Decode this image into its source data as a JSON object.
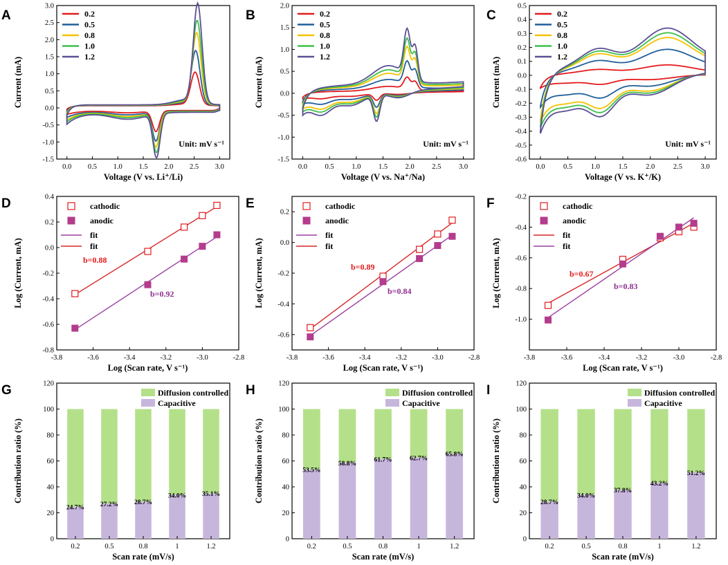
{
  "colors": {
    "red": "#e31a1c",
    "blue": "#1f5f99",
    "yellow": "#f5c200",
    "green": "#3dbf4a",
    "purple": "#5b4f95",
    "fit_red": "#d62728",
    "fit_purple": "#9b3fa0",
    "marker": "#b43c8c",
    "bar_capacitive": "#c7b6dc",
    "bar_diffusion": "#b4e08a",
    "blabel_red": "#e31a1c",
    "blabel_purple": "#8e2f8e"
  },
  "chart_data": [
    {
      "id": "A",
      "type": "line",
      "letter": "A",
      "xlabel": "Voltage (V vs. Li⁺/Li)",
      "ylabel": "Current (mA)",
      "xlim": [
        -0.2,
        3.2
      ],
      "ylim": [
        -1.5,
        3.0
      ],
      "xticks": [
        "0.0",
        "0.5",
        "1.0",
        "1.5",
        "2.0",
        "2.5",
        "3.0"
      ],
      "yticks": [
        "-1.5",
        "-1.0",
        "-0.5",
        "0.0",
        "0.5",
        "1.0",
        "1.5",
        "2.0",
        "2.5",
        "3.0"
      ],
      "unit_label": "Unit: mV s⁻¹",
      "legend": [
        "0.2",
        "0.5",
        "0.8",
        "1.0",
        "1.2"
      ],
      "series": [
        {
          "name": "0.2",
          "red_peak": 0.95,
          "ox_peak_v": 2.52,
          "red_peak_v": 1.75,
          "red_min": -0.6
        },
        {
          "name": "0.5",
          "red_peak": 1.55,
          "ox_peak_v": 2.53,
          "red_peak_v": 1.75,
          "red_min": -0.85
        },
        {
          "name": "0.8",
          "red_peak": 2.05,
          "ox_peak_v": 2.55,
          "red_peak_v": 1.75,
          "red_min": -1.0
        },
        {
          "name": "1.0",
          "red_peak": 2.4,
          "ox_peak_v": 2.56,
          "red_peak_v": 1.76,
          "red_min": -1.15
        },
        {
          "name": "1.2",
          "red_peak": 2.88,
          "ox_peak_v": 2.57,
          "red_peak_v": 1.76,
          "red_min": -1.28
        }
      ]
    },
    {
      "id": "B",
      "type": "line",
      "letter": "B",
      "xlabel": "Voltage (V vs. Na⁺/Na)",
      "ylabel": "Current (mA)",
      "xlim": [
        -0.2,
        3.2
      ],
      "ylim": [
        -1.5,
        2.0
      ],
      "xticks": [
        "0.0",
        "0.5",
        "1.0",
        "1.5",
        "2.0",
        "2.5",
        "3.0"
      ],
      "yticks": [
        "-1.5",
        "-1.0",
        "-0.5",
        "0.0",
        "0.5",
        "1.0",
        "1.5",
        "2.0"
      ],
      "unit_label": "Unit: mV s⁻¹",
      "legend": [
        "0.2",
        "0.5",
        "0.8",
        "1.0",
        "1.2"
      ],
      "series": [
        {
          "name": "0.2",
          "scale": 0.25
        },
        {
          "name": "0.5",
          "scale": 0.5
        },
        {
          "name": "0.8",
          "scale": 0.72
        },
        {
          "name": "1.0",
          "scale": 0.85
        },
        {
          "name": "1.2",
          "scale": 1.0
        }
      ]
    },
    {
      "id": "C",
      "type": "line",
      "letter": "C",
      "xlabel": "Voltage (V vs. K⁺/K)",
      "ylabel": "Current (mA)",
      "xlim": [
        -0.2,
        3.2
      ],
      "ylim": [
        -0.6,
        0.5
      ],
      "xticks": [
        "0.0",
        "0.5",
        "1.0",
        "1.5",
        "2.0",
        "2.5",
        "3.0"
      ],
      "yticks": [
        "-0.6",
        "-0.5",
        "-0.4",
        "-0.3",
        "-0.2",
        "-0.1",
        "0.0",
        "0.1",
        "0.2",
        "0.3",
        "0.4",
        "0.5"
      ],
      "unit_label": "Unit: mV s⁻¹",
      "legend": [
        "0.2",
        "0.5",
        "0.8",
        "1.0",
        "1.2"
      ],
      "series": [
        {
          "name": "0.2",
          "scale": 0.22
        },
        {
          "name": "0.5",
          "scale": 0.55
        },
        {
          "name": "0.8",
          "scale": 0.8
        },
        {
          "name": "1.0",
          "scale": 0.9
        },
        {
          "name": "1.2",
          "scale": 1.0
        }
      ]
    },
    {
      "id": "D",
      "type": "scatter",
      "letter": "D",
      "xlabel": "Log (Scan rate, V s⁻¹)",
      "ylabel": "Log (Current, mA)",
      "xlim": [
        -3.8,
        -2.8
      ],
      "ylim": [
        -0.8,
        0.4
      ],
      "xticks": [
        "-3.8",
        "-3.6",
        "-3.4",
        "-3.2",
        "-3.0",
        "-2.8"
      ],
      "yticks": [
        "-0.8",
        "-0.6",
        "-0.4",
        "-0.2",
        "0.0",
        "0.2",
        "0.4"
      ],
      "legend": [
        "cathodic",
        "anodic",
        "fit",
        "fit"
      ],
      "x": [
        -3.7,
        -3.3,
        -3.1,
        -3.0,
        -2.92
      ],
      "cathodic": [
        -0.36,
        -0.03,
        0.16,
        0.25,
        0.33
      ],
      "anodic": [
        -0.63,
        -0.29,
        -0.09,
        0.01,
        0.1
      ],
      "b_cathodic": "b=0.88",
      "b_anodic": "b=0.92"
    },
    {
      "id": "E",
      "type": "scatter",
      "letter": "E",
      "xlabel": "Log (Scan rate, V s⁻¹)",
      "ylabel": "Log (Current, mA)",
      "xlim": [
        -3.8,
        -2.8
      ],
      "ylim": [
        -0.7,
        0.3
      ],
      "xticks": [
        "-3.8",
        "-3.6",
        "-3.4",
        "-3.2",
        "-3.0",
        "-2.8"
      ],
      "yticks": [
        "-0.6",
        "-0.4",
        "-0.2",
        "0.0",
        "0.2"
      ],
      "legend": [
        "cathodic",
        "anodic",
        "fit",
        "fit"
      ],
      "x": [
        -3.7,
        -3.3,
        -3.1,
        -3.0,
        -2.92
      ],
      "cathodic": [
        -0.555,
        -0.22,
        -0.045,
        0.055,
        0.145
      ],
      "anodic": [
        -0.615,
        -0.255,
        -0.105,
        -0.02,
        0.04
      ],
      "b_cathodic": "b=0.89",
      "b_anodic": "b=0.84"
    },
    {
      "id": "F",
      "type": "scatter",
      "letter": "F",
      "xlabel": "Log (Scan rate, V s⁻¹)",
      "ylabel": "Log (Current, mA)",
      "xlim": [
        -3.8,
        -2.8
      ],
      "ylim": [
        -1.2,
        -0.2
      ],
      "xticks": [
        "-3.8",
        "-3.6",
        "-3.4",
        "-3.2",
        "-3.0",
        "-2.8"
      ],
      "yticks": [
        "-1.0",
        "-0.8",
        "-0.6",
        "-0.4",
        "-0.2"
      ],
      "legend": [
        "cathodic",
        "anodic",
        "fit",
        "fit"
      ],
      "x": [
        -3.7,
        -3.3,
        -3.1,
        -3.0,
        -2.92
      ],
      "cathodic": [
        -0.91,
        -0.61,
        -0.47,
        -0.43,
        -0.4
      ],
      "anodic": [
        -1.005,
        -0.64,
        -0.46,
        -0.4,
        -0.375
      ],
      "b_cathodic": "b=0.67",
      "b_anodic": "b=0.83"
    },
    {
      "id": "G",
      "type": "bar",
      "letter": "G",
      "xlabel": "Scan rate (mV/s)",
      "ylabel": "Contribution ratio (%)",
      "ylim": [
        0,
        120
      ],
      "yticks": [
        "0",
        "20",
        "40",
        "60",
        "80",
        "100",
        "120"
      ],
      "categories": [
        "0.2",
        "0.5",
        "0.8",
        "1",
        "1.2"
      ],
      "legend": [
        "Diffusion controlled",
        "Capacitive"
      ],
      "capacitive": [
        24.7,
        27.2,
        28.7,
        34.0,
        35.1
      ],
      "labels": [
        "24.7%",
        "27.2%",
        "28.7%",
        "34.0%",
        "35.1%"
      ]
    },
    {
      "id": "H",
      "type": "bar",
      "letter": "H",
      "xlabel": "Scan rate (mV/s)",
      "ylabel": "Contribution ratio (%)",
      "ylim": [
        0,
        120
      ],
      "yticks": [
        "0",
        "20",
        "40",
        "60",
        "80",
        "100",
        "120"
      ],
      "categories": [
        "0.2",
        "0.5",
        "0.8",
        "1",
        "1.2"
      ],
      "legend": [
        "Diffusion controlled",
        "Capacitive"
      ],
      "capacitive": [
        53.5,
        58.8,
        61.7,
        62.7,
        65.8
      ],
      "labels": [
        "53.5%",
        "58.8%",
        "61.7%",
        "62.7%",
        "65.8%"
      ]
    },
    {
      "id": "I",
      "type": "bar",
      "letter": "I",
      "xlabel": "Scan rate (mV/s)",
      "ylabel": "Contribution ratio (%)",
      "ylim": [
        0,
        120
      ],
      "yticks": [
        "0",
        "20",
        "40",
        "60",
        "80",
        "100",
        "120"
      ],
      "categories": [
        "0.2",
        "0.5",
        "0.8",
        "1",
        "1.2"
      ],
      "legend": [
        "Diffusion controlled",
        "Capacitive"
      ],
      "capacitive": [
        28.7,
        34.0,
        37.8,
        43.2,
        51.2
      ],
      "labels": [
        "28.7%",
        "34.0%",
        "37.8%",
        "43.2%",
        "51.2%"
      ]
    }
  ]
}
